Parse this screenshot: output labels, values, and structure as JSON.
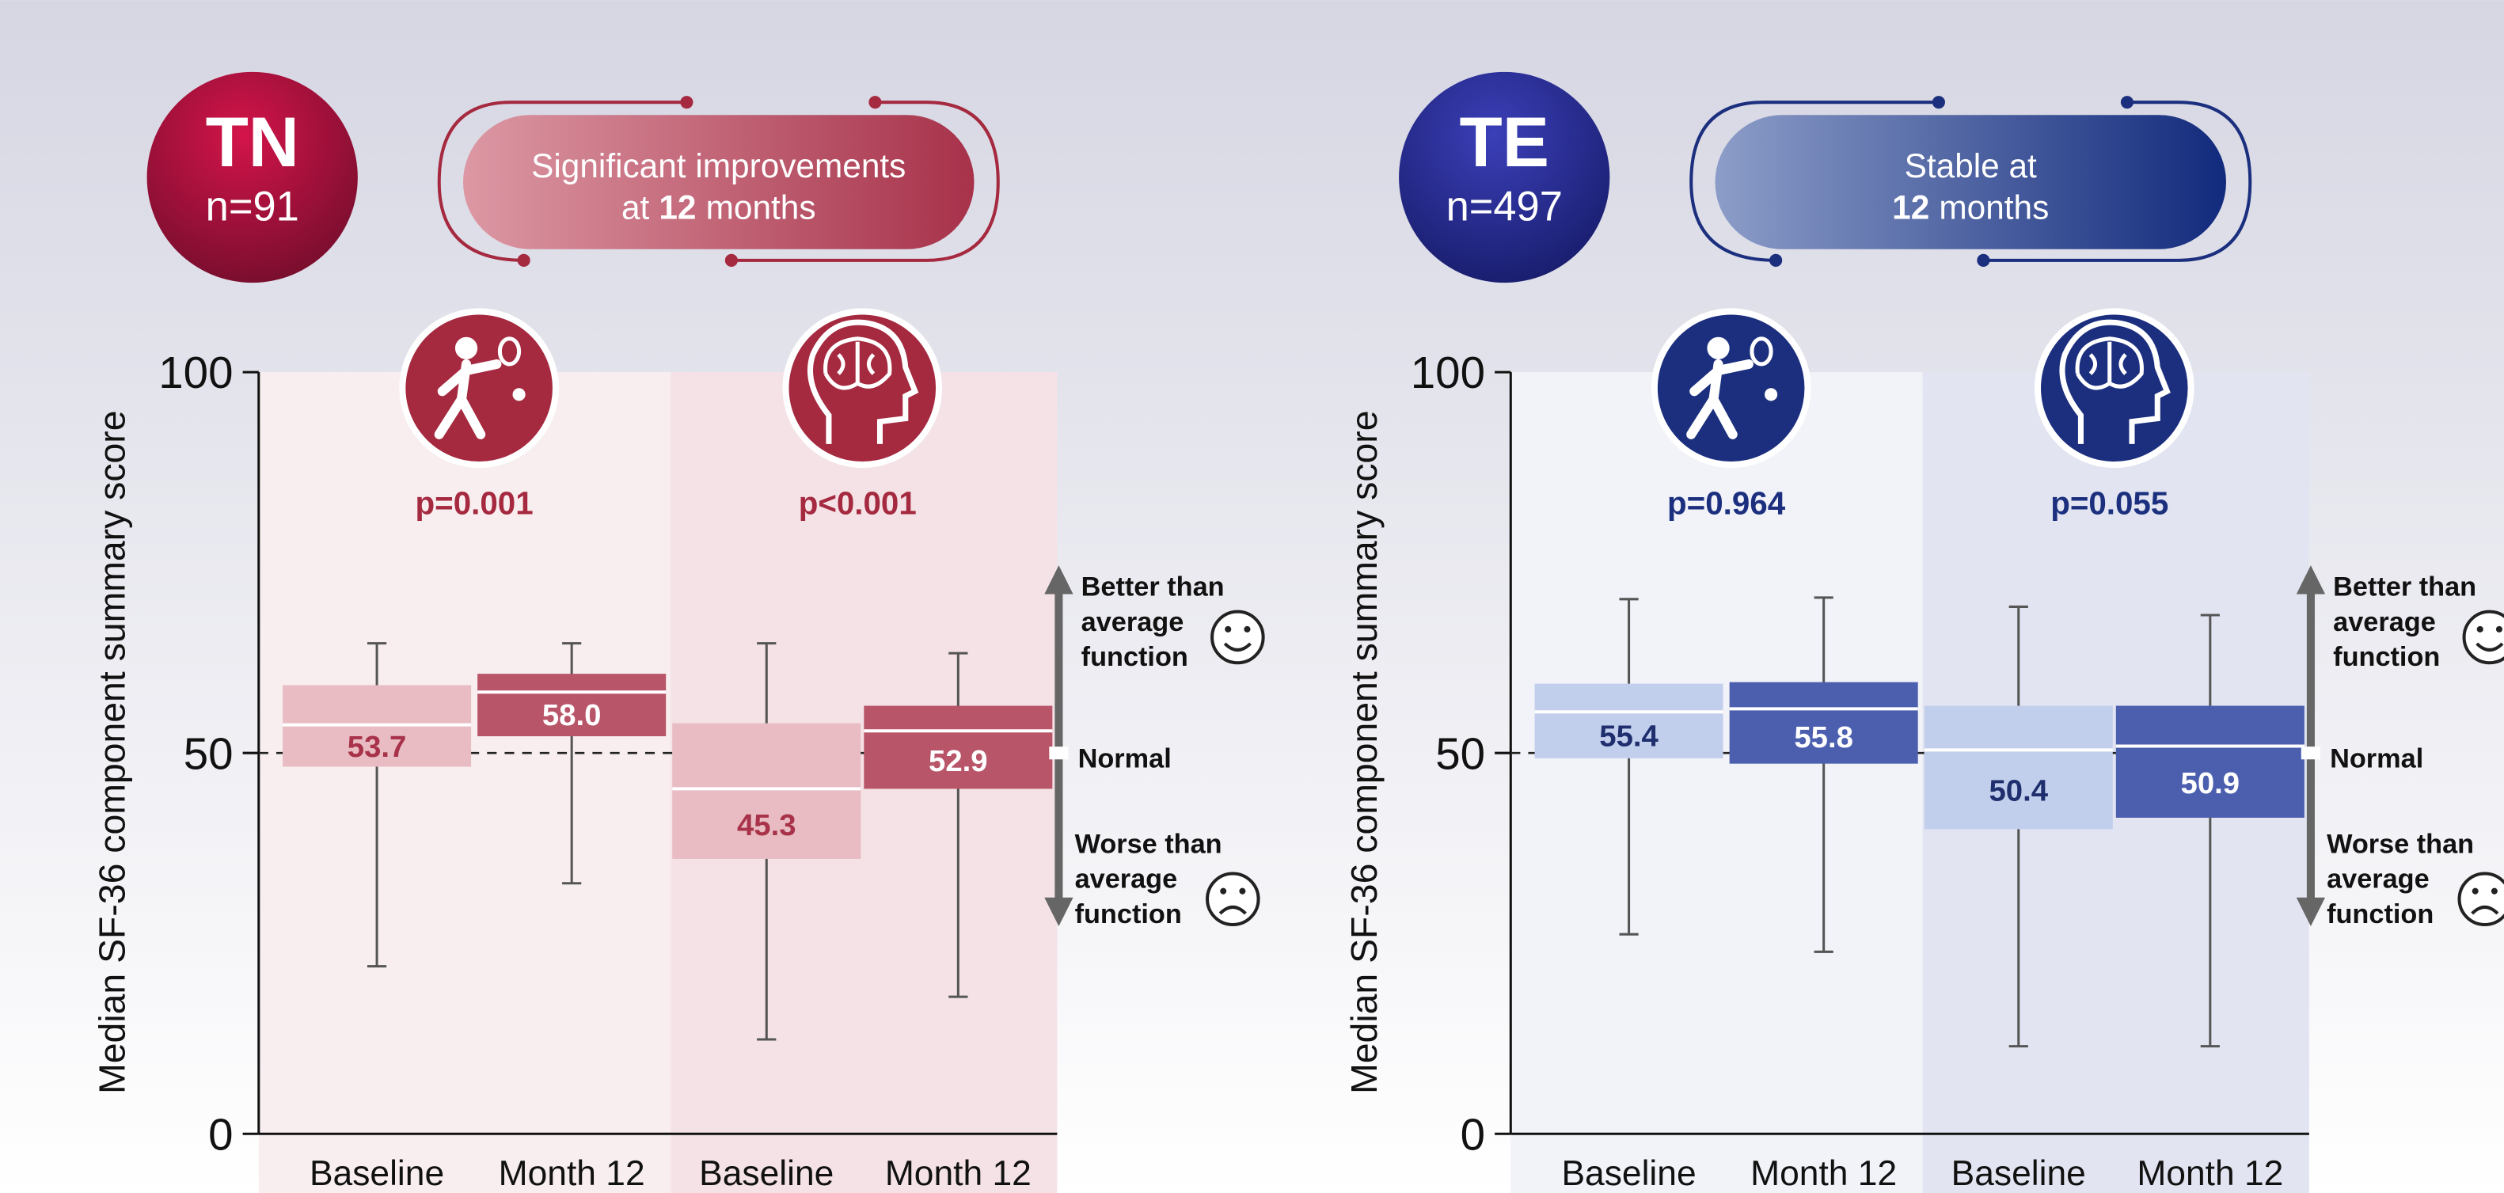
{
  "chart_data": [
    {
      "type": "box",
      "badge": "TN",
      "n": "n=91",
      "banner": {
        "line1": "Significant improvements",
        "pre": "at",
        "bold": "12",
        "post": "months"
      },
      "ylabel": "Median SF-36 component summary score",
      "ylim": [
        0,
        100
      ],
      "yticks": [
        0,
        50,
        100
      ],
      "categories": [
        "Baseline",
        "Month 12",
        "Baseline",
        "Month 12"
      ],
      "groups": [
        "p=0.001",
        "p<0.001"
      ],
      "whisker_low": [
        22.0,
        32.9,
        12.4,
        18.0
      ],
      "q1": [
        48.2,
        52.2,
        36.1,
        45.3
      ],
      "median": [
        53.7,
        58.0,
        45.3,
        52.9
      ],
      "q3": [
        58.9,
        60.4,
        53.9,
        56.2
      ],
      "whisker_high": [
        64.4,
        64.4,
        64.4,
        63.1
      ],
      "value_labels": [
        "53.7",
        "58.0",
        "45.3",
        "52.9"
      ],
      "colors": [
        "#e8bcc2",
        "#b85568",
        "#e8bcc2",
        "#b85568"
      ],
      "label_colors": [
        "#a8324a",
        "#ffffff",
        "#a8324a",
        "#ffffff"
      ],
      "theme": "#a5293f",
      "panel_colors": [
        "#f8eeef",
        "#f4e2e6"
      ],
      "reference": 50,
      "reference_label": "Normal",
      "better": [
        "Better than",
        "average",
        "function"
      ],
      "worse": [
        "Worse than",
        "average",
        "function"
      ]
    },
    {
      "type": "box",
      "badge": "TE",
      "n": "n=497",
      "banner": {
        "line1": "Stable at",
        "bold": "12",
        "post": "months"
      },
      "ylabel": "Median SF-36 component summary score",
      "ylim": [
        0,
        100
      ],
      "yticks": [
        0,
        50,
        100
      ],
      "categories": [
        "Baseline",
        "Month 12",
        "Baseline",
        "Month 12"
      ],
      "groups": [
        "p=0.964",
        "p=0.055"
      ],
      "whisker_low": [
        26.2,
        23.9,
        11.5,
        11.5
      ],
      "q1": [
        49.3,
        48.6,
        40.0,
        41.5
      ],
      "median": [
        55.4,
        55.8,
        50.4,
        50.9
      ],
      "q3": [
        59.1,
        59.3,
        56.2,
        56.2
      ],
      "whisker_high": [
        70.2,
        70.4,
        69.2,
        68.1
      ],
      "value_labels": [
        "55.4",
        "55.8",
        "50.4",
        "50.9"
      ],
      "colors": [
        "#c2cfec",
        "#4b5fae",
        "#c2cfec",
        "#4b5fae"
      ],
      "label_colors": [
        "#1f2f6e",
        "#ffffff",
        "#1f2f6e",
        "#ffffff"
      ],
      "theme": "#1b2f7e",
      "panel_colors": [
        "#f1f3f9",
        "#e2e5f1"
      ],
      "reference": 50,
      "reference_label": "Normal",
      "better": [
        "Better than",
        "average",
        "function"
      ],
      "worse": [
        "Worse than",
        "average",
        "function"
      ]
    }
  ]
}
